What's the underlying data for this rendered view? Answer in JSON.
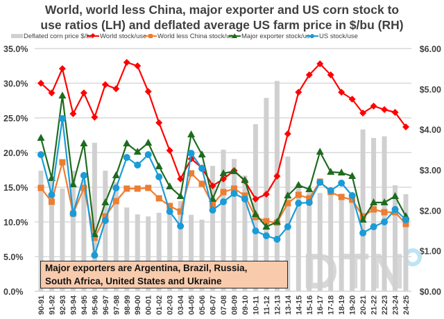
{
  "chart_data": {
    "type": "bar+line",
    "title": "World, world less China, major exporter and US corn stock to use ratios (LH) and deflated average US farm price in $/bu (RH)",
    "title_lines": [
      "World, world less China, major exporter and US corn stock to",
      "use ratios (LH) and deflated average US farm price in $/bu (RH)"
    ],
    "xlabel": "",
    "ylabel_left": "",
    "ylabel_right": "",
    "left_axis": {
      "range": [
        0,
        35
      ],
      "ticks": [
        "0.0%",
        "5.0%",
        "10.0%",
        "15.0%",
        "20.0%",
        "25.0%",
        "30.0%",
        "35.0%"
      ],
      "unit": "%"
    },
    "right_axis": {
      "range": [
        0,
        6
      ],
      "ticks": [
        "$0.00",
        "$1.00",
        "$2.00",
        "$3.00",
        "$4.00",
        "$5.00",
        "$6.00"
      ],
      "unit": "$/bu"
    },
    "grid": true,
    "legend_position": "top",
    "categories": [
      "90-91",
      "91-92",
      "92-93",
      "93-94",
      "94-95",
      "95-96",
      "96-97",
      "97-98",
      "98-99",
      "99-00",
      "00-01",
      "01-02",
      "02-03",
      "03-04",
      "04-05",
      "05-06",
      "06-07",
      "07-08",
      "08-09",
      "09-10",
      "10-11",
      "11-12",
      "12-13",
      "13-14",
      "14-15",
      "15-16",
      "16-17",
      "17-18",
      "18-19",
      "19-20",
      "20-21",
      "21-22",
      "22-23",
      "23-24",
      "24-25"
    ],
    "bar_series": {
      "name": "Deflated corn price $/bu",
      "axis": "right",
      "color": "#d0d0d0",
      "values": [
        2.98,
        2.78,
        2.54,
        2.98,
        2.75,
        3.67,
        2.98,
        2.7,
        2.07,
        1.9,
        1.85,
        1.94,
        1.95,
        2.23,
        1.89,
        1.77,
        3.1,
        3.5,
        3.27,
        2.86,
        4.13,
        4.78,
        5.2,
        3.33,
        2.66,
        2.57,
        2.43,
        2.37,
        2.4,
        2.37,
        4.0,
        3.79,
        3.83,
        2.62,
        2.4
      ]
    },
    "series": [
      {
        "name": "World stock/use",
        "axis": "left",
        "color": "#ff0000",
        "marker": "diamond",
        "values": [
          30.0,
          28.6,
          32.1,
          25.6,
          28.6,
          25.1,
          29.8,
          29.2,
          33.0,
          32.5,
          28.8,
          24.3,
          20.3,
          16.2,
          19.1,
          17.8,
          15.2,
          16.2,
          17.4,
          15.9,
          13.3,
          14.0,
          16.6,
          22.7,
          28.7,
          31.2,
          32.8,
          31.2,
          28.7,
          27.7,
          25.7,
          26.7,
          26.2,
          25.8,
          23.7
        ]
      },
      {
        "name": "World less China stock/use",
        "axis": "left",
        "color": "#ed7d31",
        "marker": "square",
        "values": [
          14.9,
          12.9,
          18.6,
          11.2,
          14.9,
          7.7,
          10.8,
          13.0,
          14.8,
          14.8,
          14.9,
          13.4,
          12.3,
          11.5,
          17.0,
          15.5,
          12.5,
          14.3,
          14.8,
          13.8,
          10.7,
          10.1,
          9.9,
          12.7,
          13.9,
          13.4,
          15.8,
          14.3,
          13.6,
          13.2,
          10.8,
          11.8,
          11.4,
          11.4,
          9.7
        ]
      },
      {
        "name": "Major exporter stock/use",
        "axis": "left",
        "color": "#1e6b1e",
        "marker": "triangle",
        "values": [
          22.1,
          16.3,
          28.2,
          15.4,
          21.3,
          8.2,
          12.8,
          16.7,
          21.3,
          20.1,
          21.4,
          18.0,
          15.1,
          13.7,
          22.6,
          19.7,
          13.3,
          17.0,
          17.3,
          16.0,
          11.1,
          9.3,
          10.0,
          13.8,
          15.3,
          14.7,
          20.1,
          17.2,
          17.1,
          16.6,
          10.3,
          12.8,
          12.8,
          13.7,
          10.8
        ]
      },
      {
        "name": "US stock/use",
        "axis": "left",
        "color": "#1a9bd7",
        "marker": "circle",
        "values": [
          19.7,
          13.9,
          24.9,
          11.2,
          16.7,
          5.2,
          10.2,
          14.9,
          19.3,
          18.2,
          19.7,
          16.5,
          11.5,
          9.4,
          19.9,
          17.7,
          11.7,
          12.9,
          14.1,
          13.3,
          8.7,
          8.0,
          7.5,
          9.3,
          12.7,
          12.8,
          15.7,
          14.5,
          15.6,
          13.8,
          8.4,
          9.3,
          10.0,
          11.8,
          10.3
        ]
      }
    ],
    "annotations": [
      "Major exporters are Argentina, Brazil, Russia,",
      "South Africa, United States and Ukraine"
    ],
    "watermark": "DTN"
  }
}
